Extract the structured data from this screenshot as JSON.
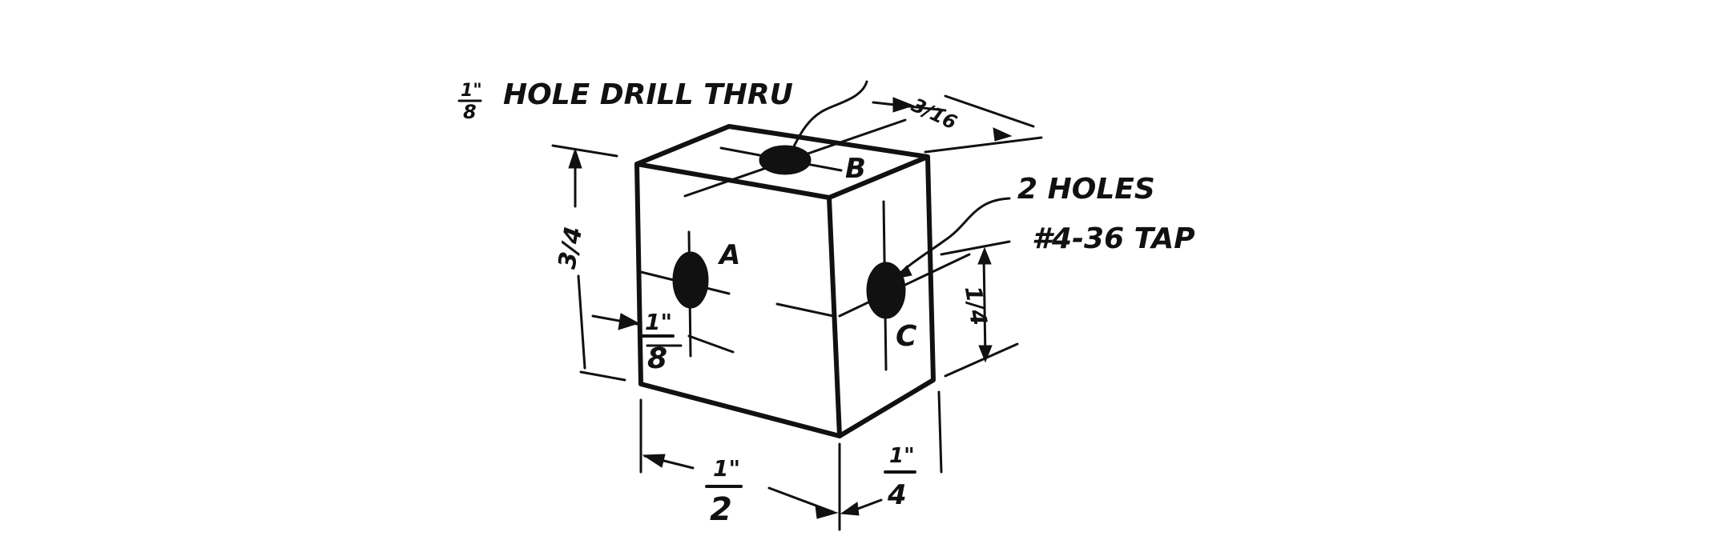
{
  "callout_drill": {
    "size": "1/8\"",
    "text": "HOLE DRILL THRU"
  },
  "callout_tap": {
    "line1": "2 HOLES",
    "line2": "#4-36 TAP"
  },
  "hole_labels": {
    "top": "B",
    "front": "A",
    "side": "C"
  },
  "dimensions": {
    "height": "3/4",
    "width": "1\"/2",
    "depth": "1\"/4",
    "hole_a_offset": "1\"/8",
    "hole_c_height": "1/4",
    "top_offset": "3/16"
  },
  "colors": {
    "ink": "#111111",
    "paper": "#ffffff"
  }
}
